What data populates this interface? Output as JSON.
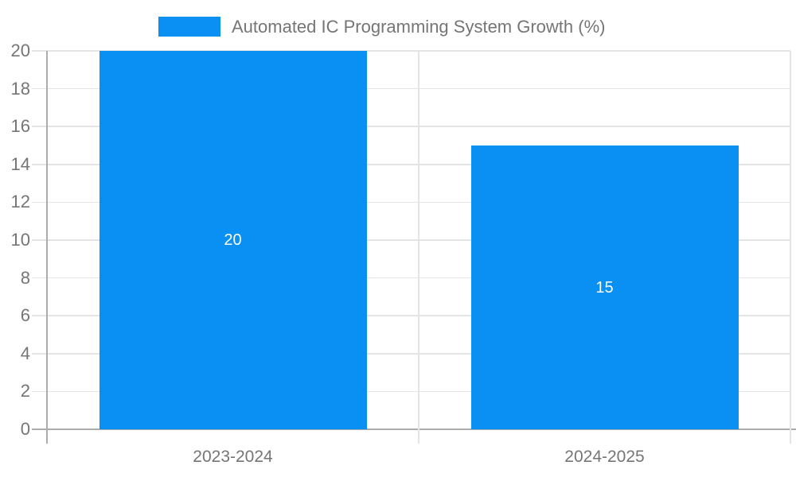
{
  "legend": {
    "label": "Automated IC Programming System Growth (%)"
  },
  "chart_data": {
    "type": "bar",
    "title": "Automated IC Programming System Growth (%)",
    "series": [
      {
        "name": "Automated IC Programming System Growth (%)",
        "values": [
          20,
          15
        ],
        "data_labels": [
          "20",
          "15"
        ]
      }
    ],
    "categories": [
      "2023-2024",
      "2024-2025"
    ],
    "xlabel": "",
    "ylabel": "",
    "ylim": [
      0,
      20
    ],
    "ytick_step": 2,
    "yticks": [
      0,
      2,
      4,
      6,
      8,
      10,
      12,
      14,
      16,
      18,
      20
    ],
    "grid": true,
    "legend_position": "top",
    "colors": {
      "bar": "#0A90F2",
      "data_label": "#FFFFFF",
      "axis_text": "#757575",
      "gridline": "#E4E4E4",
      "axis_line": "#ACACAC",
      "background": "#FFFFFF",
      "legend_text": "#757575"
    }
  }
}
